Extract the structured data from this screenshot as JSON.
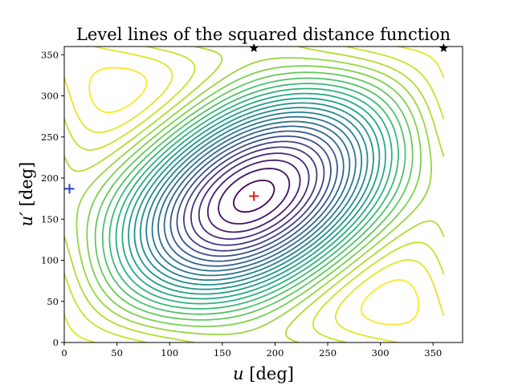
{
  "chart_data": {
    "type": "contour",
    "title": "Level lines of the squared distance function",
    "xlabel": {
      "var": "u",
      "unit": "[deg]"
    },
    "ylabel": {
      "var": "u′",
      "unit": "[deg]"
    },
    "xlim": [
      0,
      378
    ],
    "ylim": [
      0,
      360
    ],
    "xticks": [
      0,
      50,
      100,
      150,
      200,
      250,
      300,
      350
    ],
    "yticks": [
      0,
      50,
      100,
      150,
      200,
      250,
      300,
      350
    ],
    "grid": false,
    "legend": "none",
    "colormap": "viridis",
    "contour_levels": 26,
    "field": {
      "description": "squared distance, periodic in u and u', maximum near (180, 178)",
      "center": [
        180,
        178
      ],
      "coupling": 0.78
    },
    "markers": [
      {
        "name": "max-marker",
        "x": 180,
        "y": 178,
        "symbol": "plus",
        "color": "#e31a1c"
      },
      {
        "name": "min-marker",
        "x": 5,
        "y": 187,
        "symbol": "plus",
        "color": "#1f3fd6"
      },
      {
        "name": "saddle-marker-top",
        "x": 180,
        "y": 358,
        "symbol": "star",
        "color": "#000000"
      },
      {
        "name": "saddle-marker-corner",
        "x": 360,
        "y": 358,
        "symbol": "star",
        "color": "#000000"
      }
    ],
    "colors": {
      "axis": "#000000",
      "background": "#ffffff"
    }
  }
}
